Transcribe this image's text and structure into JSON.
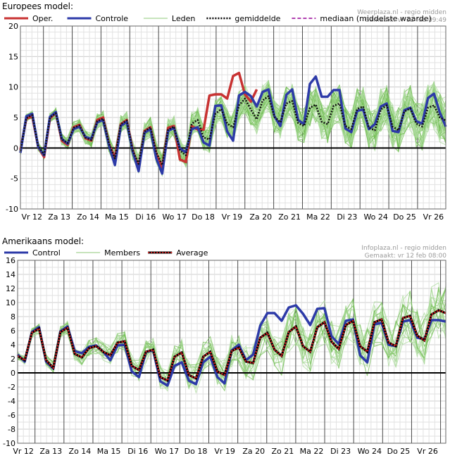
{
  "chart_data": [
    {
      "type": "line",
      "panel_title": "Europees model:",
      "credit": [
        "Weerplaza.nl - regio midden",
        "Gemaakt: vr 12 feb 09:49"
      ],
      "legend": [
        {
          "label": "Oper.",
          "color": "#c83232",
          "style": "solid"
        },
        {
          "label": "Controle",
          "color": "#2d3aa8",
          "style": "solid"
        },
        {
          "label": "Leden",
          "color": "#8fc97a",
          "style": "thin"
        },
        {
          "label": "gemiddelde",
          "color": "#000000",
          "style": "dotted"
        },
        {
          "label": "mediaan (middelste waarde)",
          "color": "#b040b0",
          "style": "dashed"
        }
      ],
      "ylim": [
        -10,
        20
      ],
      "y_ticks": [
        -10,
        -5,
        0,
        5,
        10,
        15,
        20
      ],
      "x_range": [
        0,
        72
      ],
      "day_labels": [
        "Vr 12",
        "Za 13",
        "Zo 14",
        "Ma 15",
        "Di 16",
        "Wo 17",
        "Do 18",
        "Vr 19",
        "Za 20",
        "Zo 21",
        "Ma 22",
        "Di 23",
        "Wo 24",
        "Do 25",
        "Vr 26"
      ],
      "series": [
        {
          "name": "Oper.",
          "color": "#c83232",
          "width": 3.5,
          "x": [
            0,
            1,
            2,
            3,
            4,
            5,
            6,
            7,
            8,
            9,
            10,
            11,
            12,
            13,
            14,
            15,
            16,
            17,
            18,
            19,
            20,
            21,
            22,
            23,
            24,
            25,
            26,
            27,
            28,
            29,
            30,
            31,
            32,
            33,
            34,
            35,
            36,
            37,
            38,
            39,
            40
          ],
          "values": [
            -0.3,
            4.8,
            5.2,
            0.2,
            -1.5,
            4.8,
            5.8,
            1.2,
            0.5,
            3.4,
            3.8,
            1.6,
            1.2,
            4.6,
            5.0,
            0.6,
            -1.6,
            3.9,
            4.6,
            -0.3,
            -3.2,
            2.8,
            3.4,
            -0.9,
            -3.2,
            3.3,
            3.6,
            -1.9,
            -2.3,
            3.6,
            3.0,
            3.0,
            8.6,
            8.8,
            8.8,
            8.1,
            11.8,
            12.3,
            8.8,
            7.6,
            9.6
          ]
        },
        {
          "name": "Controle",
          "color": "#2d3aa8",
          "width": 3.5,
          "x": [
            0,
            1,
            2,
            3,
            4,
            5,
            6,
            7,
            8,
            9,
            10,
            11,
            12,
            13,
            14,
            15,
            16,
            17,
            18,
            19,
            20,
            21,
            22,
            23,
            24,
            25,
            26,
            27,
            28,
            29,
            30,
            31,
            32,
            33,
            34,
            35,
            36,
            37,
            38,
            39,
            40,
            41,
            42,
            43,
            44,
            45,
            46,
            47,
            48,
            49,
            50,
            51,
            52,
            53,
            54,
            55,
            56,
            57,
            58,
            59,
            60,
            61,
            62,
            63,
            64,
            65,
            66,
            67,
            68,
            69,
            70,
            71,
            72
          ],
          "values": [
            -0.8,
            5.2,
            5.6,
            0.2,
            -1.2,
            5.1,
            5.9,
            1.5,
            0.7,
            3.1,
            3.5,
            1.8,
            1.5,
            4.2,
            4.6,
            0.4,
            -2.8,
            3.6,
            4.3,
            -0.6,
            -3.8,
            2.5,
            3.1,
            -1.7,
            -4.2,
            2.8,
            3.3,
            -0.1,
            -0.7,
            3.1,
            3.4,
            0.9,
            0.4,
            6.9,
            7.0,
            2.7,
            1.2,
            8.6,
            9.2,
            8.5,
            6.8,
            9.2,
            9.6,
            5.2,
            3.6,
            8.7,
            9.6,
            4.6,
            3.9,
            10.5,
            11.7,
            8.4,
            8.4,
            9.5,
            9.5,
            3.2,
            2.6,
            6.1,
            6.3,
            3.1,
            3.9,
            6.8,
            7.3,
            2.8,
            2.6,
            6.2,
            6.6,
            4.4,
            4.0,
            8.2,
            8.9,
            5.8,
            3.5
          ]
        },
        {
          "name": "gemiddelde",
          "color": "#111111",
          "width": 2.6,
          "dash": "2,2",
          "x": [
            0,
            1,
            2,
            3,
            4,
            5,
            6,
            7,
            8,
            9,
            10,
            11,
            12,
            13,
            14,
            15,
            16,
            17,
            18,
            19,
            20,
            21,
            22,
            23,
            24,
            25,
            26,
            27,
            28,
            29,
            30,
            31,
            32,
            33,
            34,
            35,
            36,
            37,
            38,
            39,
            40,
            41,
            42,
            43,
            44,
            45,
            46,
            47,
            48,
            49,
            50,
            51,
            52,
            53,
            54,
            55,
            56,
            57,
            58,
            59,
            60,
            61,
            62,
            63,
            64,
            65,
            66,
            67,
            68,
            69,
            70,
            71,
            72
          ],
          "values": [
            -0.5,
            4.9,
            5.4,
            0.3,
            -1.1,
            5.0,
            5.7,
            1.4,
            0.8,
            3.3,
            3.7,
            1.7,
            1.3,
            4.4,
            4.8,
            0.7,
            -1.7,
            3.9,
            4.5,
            -0.4,
            -2.6,
            2.7,
            3.4,
            -0.7,
            -2.8,
            3.0,
            3.5,
            -0.4,
            -1.2,
            4.0,
            4.6,
            1.7,
            1.4,
            5.6,
            6.4,
            4.0,
            3.4,
            7.0,
            8.1,
            6.3,
            4.7,
            7.8,
            8.5,
            5.1,
            4.2,
            7.3,
            7.7,
            4.1,
            3.6,
            6.6,
            7.1,
            4.3,
            3.9,
            6.9,
            7.3,
            3.6,
            3.1,
            6.4,
            6.8,
            3.3,
            2.9,
            6.3,
            7.0,
            3.5,
            2.9,
            6.0,
            6.5,
            4.0,
            3.5,
            6.6,
            7.0,
            5.0,
            4.5
          ]
        }
      ]
    },
    {
      "type": "line",
      "panel_title": "Amerikaans model:",
      "credit": [
        "Infoplaza.nl - regio midden",
        "Gemaakt: vr 12 feb 08:00"
      ],
      "legend": [
        {
          "label": "Control",
          "color": "#2d3aa8",
          "style": "solid"
        },
        {
          "label": "Members",
          "color": "#8fc97a",
          "style": "thin"
        },
        {
          "label": "Average",
          "color": "#000000",
          "style": "dotted-red"
        }
      ],
      "ylim": [
        -10,
        16
      ],
      "y_ticks": [
        -10,
        -8,
        -6,
        -4,
        -2,
        0,
        2,
        4,
        6,
        8,
        10,
        12,
        14,
        16
      ],
      "x_range": [
        0,
        60
      ],
      "day_labels": [
        "Vr 12",
        "Za 13",
        "Zo 14",
        "Ma 15",
        "Di 16",
        "Wo 17",
        "Do 18",
        "Vr 19",
        "Za 20",
        "Zo 21",
        "Ma 22",
        "Di 23",
        "Wo 24",
        "Do 25",
        "Vr 26"
      ],
      "series": [
        {
          "name": "Control",
          "color": "#2d3aa8",
          "width": 3.5,
          "x": [
            0,
            1,
            2,
            3,
            4,
            5,
            6,
            7,
            8,
            9,
            10,
            11,
            12,
            13,
            14,
            15,
            16,
            17,
            18,
            19,
            20,
            21,
            22,
            23,
            24,
            25,
            26,
            27,
            28,
            29,
            30,
            31,
            32,
            33,
            34,
            35,
            36,
            37,
            38,
            39,
            40,
            41,
            42,
            43,
            44,
            45,
            46,
            47,
            48,
            49,
            50,
            51,
            52,
            53,
            54,
            55,
            56,
            57,
            58,
            59,
            60
          ],
          "values": [
            2.6,
            1.6,
            5.8,
            6.5,
            1.6,
            0.6,
            5.9,
            6.6,
            3.1,
            2.8,
            3.7,
            3.9,
            3.0,
            1.8,
            3.9,
            4.0,
            0.2,
            -0.6,
            3.0,
            3.2,
            -1.2,
            -1.8,
            1.0,
            1.5,
            -1.1,
            -1.6,
            1.5,
            2.3,
            -0.6,
            -1.5,
            3.2,
            4.0,
            1.8,
            2.6,
            6.7,
            8.5,
            8.5,
            7.4,
            9.3,
            9.6,
            8.4,
            6.8,
            9.1,
            9.2,
            5.2,
            4.1,
            7.4,
            7.6,
            2.5,
            1.5,
            6.9,
            7.1,
            4.0,
            3.8,
            7.3,
            7.5,
            5.0,
            4.8,
            7.5,
            7.5,
            7.3
          ]
        },
        {
          "name": "Average",
          "color": "#cc2020",
          "width": 2.6,
          "dash": "2,2",
          "underlay": "#000000",
          "x": [
            0,
            1,
            2,
            3,
            4,
            5,
            6,
            7,
            8,
            9,
            10,
            11,
            12,
            13,
            14,
            15,
            16,
            17,
            18,
            19,
            20,
            21,
            22,
            23,
            24,
            25,
            26,
            27,
            28,
            29,
            30,
            31,
            32,
            33,
            34,
            35,
            36,
            37,
            38,
            39,
            40,
            41,
            42,
            43,
            44,
            45,
            46,
            47,
            48,
            49,
            50,
            51,
            52,
            53,
            54,
            55,
            56,
            57,
            58,
            59,
            60
          ],
          "values": [
            2.4,
            1.8,
            5.7,
            6.3,
            1.8,
            0.7,
            5.8,
            6.4,
            2.7,
            2.2,
            3.5,
            3.8,
            3.0,
            2.5,
            4.3,
            4.5,
            1.0,
            0.4,
            3.0,
            3.3,
            -0.6,
            -1.1,
            2.3,
            2.9,
            -0.3,
            -0.8,
            2.3,
            3.0,
            0.2,
            -0.3,
            3.1,
            3.6,
            1.6,
            1.4,
            5.0,
            5.7,
            3.3,
            2.4,
            5.8,
            6.6,
            3.8,
            3.0,
            6.5,
            7.2,
            4.4,
            3.4,
            6.8,
            7.4,
            3.8,
            3.0,
            7.2,
            7.6,
            4.3,
            3.8,
            7.8,
            8.1,
            5.3,
            4.6,
            8.3,
            8.9,
            8.5
          ]
        }
      ]
    }
  ]
}
